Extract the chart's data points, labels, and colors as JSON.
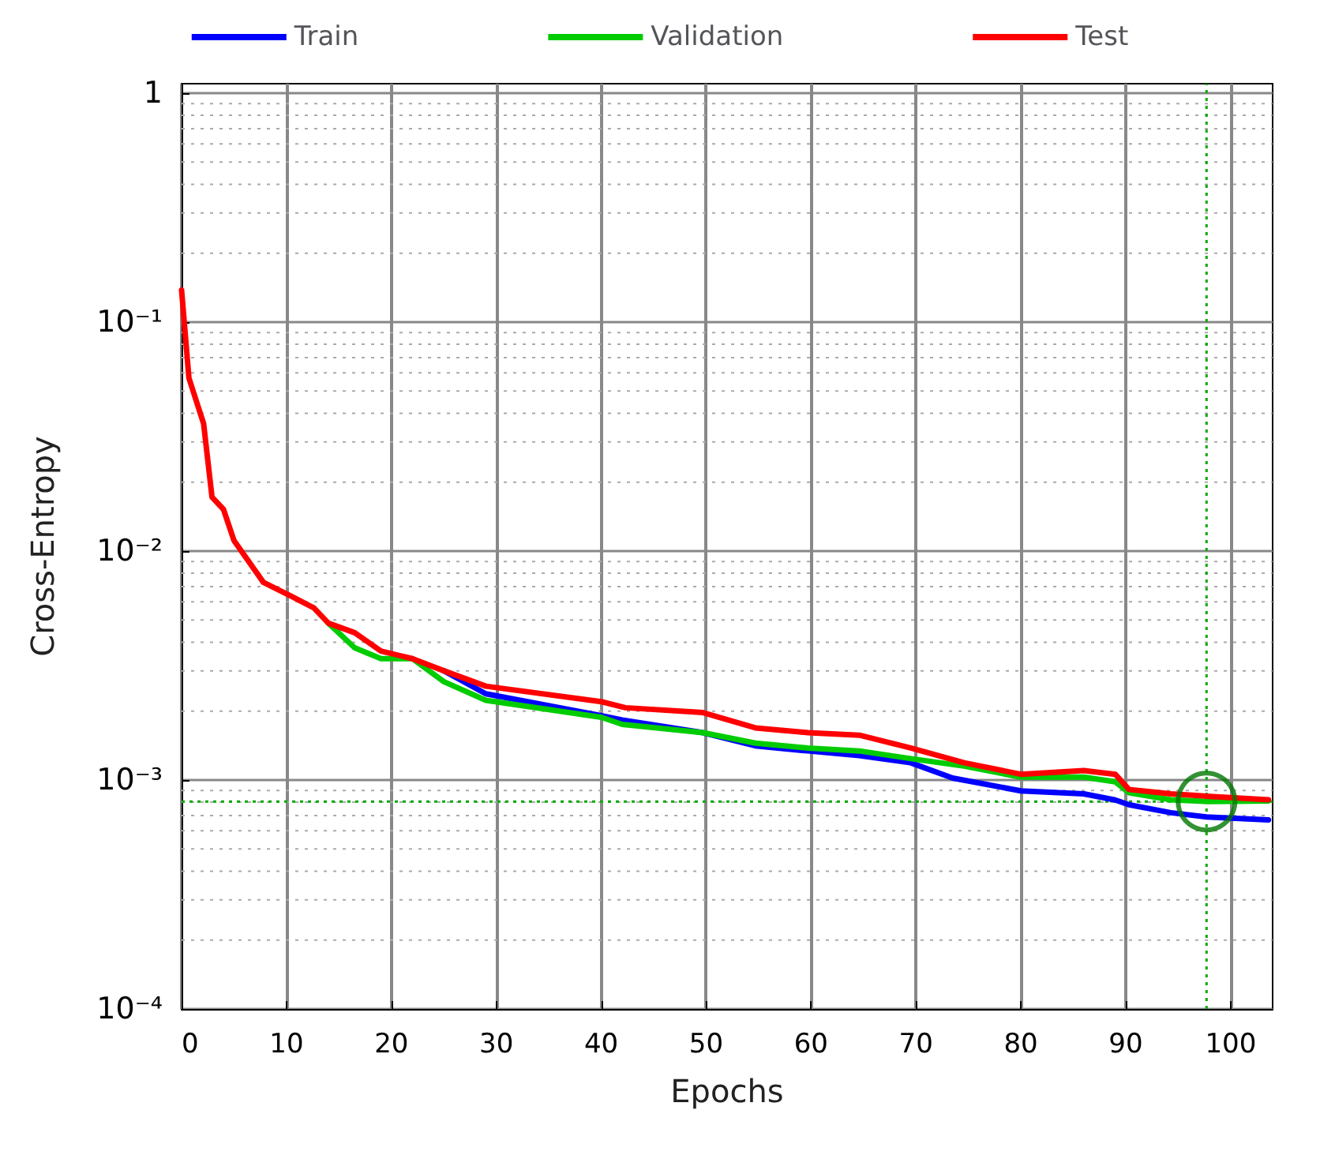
{
  "chart_data": {
    "type": "line",
    "xlabel": "Epochs",
    "ylabel": "Cross-Entropy",
    "log": "y",
    "grid": true,
    "legend": "top",
    "line_style": "solid",
    "marker": "none",
    "xlim": [
      0,
      104
    ],
    "xticks": [
      0,
      10,
      20,
      30,
      40,
      50,
      60,
      70,
      80,
      90,
      100
    ],
    "ylim": [
      0.0001,
      1.1
    ],
    "yticks": [
      {
        "value": 0.0001,
        "label": "10⁻⁴"
      },
      {
        "value": 0.001,
        "label": "10⁻³"
      },
      {
        "value": 0.01,
        "label": "10⁻²"
      },
      {
        "value": 0.1,
        "label": "10⁻¹"
      },
      1
    ],
    "series": [
      {
        "name": "Train",
        "color": "#0000ff",
        "x": [
          25,
          29,
          40,
          42,
          49.7,
          54.7,
          59.7,
          64.6,
          69.5,
          73.5,
          80,
          86,
          89,
          90.3,
          94.3,
          97.7,
          103.6
        ],
        "values": [
          0.003,
          0.00238,
          0.00191,
          0.00183,
          0.00161,
          0.00141,
          0.00134,
          0.00128,
          0.00119,
          0.00102,
          0.000897,
          0.00087,
          0.000818,
          0.00078,
          0.00072,
          0.00069,
          0.00067
        ]
      },
      {
        "name": "Validation",
        "color": "#00cc00",
        "x": [
          14,
          16.5,
          19,
          22,
          25,
          29,
          40,
          42,
          49.7,
          54.7,
          59.7,
          64.6,
          69.5,
          74.6,
          80,
          86,
          89,
          90.3,
          94.3,
          97.7,
          103.6
        ],
        "values": [
          0.00484,
          0.00378,
          0.00339,
          0.00339,
          0.00269,
          0.00223,
          0.00188,
          0.00175,
          0.00161,
          0.00145,
          0.00138,
          0.00134,
          0.00124,
          0.00115,
          0.00103,
          0.00103,
          0.000982,
          0.00088,
          0.00082,
          0.000806,
          0.00081
        ]
      },
      {
        "name": "Test",
        "color": "#ff0000",
        "x": [
          0,
          0.7,
          2.1,
          2.9,
          4,
          5,
          7.8,
          10.6,
          12.6,
          14,
          16.5,
          19,
          22,
          25,
          29,
          40,
          42.3,
          49.7,
          54.7,
          59.7,
          64.6,
          69.5,
          74.6,
          80,
          86,
          89,
          90.3,
          94.3,
          97.7,
          103.6
        ],
        "values": [
          0.138,
          0.057,
          0.036,
          0.0172,
          0.0152,
          0.0111,
          0.0073,
          0.0063,
          0.00565,
          0.00484,
          0.0044,
          0.00366,
          0.00339,
          0.003,
          0.00257,
          0.0022,
          0.00207,
          0.00197,
          0.00169,
          0.00161,
          0.00157,
          0.00138,
          0.00119,
          0.00106,
          0.0011,
          0.00106,
          0.00091,
          0.00087,
          0.00085,
          0.00082
        ]
      },
      {
        "type": "scatter",
        "color": "#007700",
        "marker": "circle",
        "x": [
          97.7
        ],
        "values": [
          0.000806
        ]
      }
    ],
    "ref_lines": [
      {
        "axis": "x",
        "value": 97.7,
        "color": "#00aa00",
        "line_style": "dotted"
      },
      {
        "axis": "y",
        "value": 0.000806,
        "color": "#00aa00",
        "line_style": "dotted"
      }
    ]
  }
}
